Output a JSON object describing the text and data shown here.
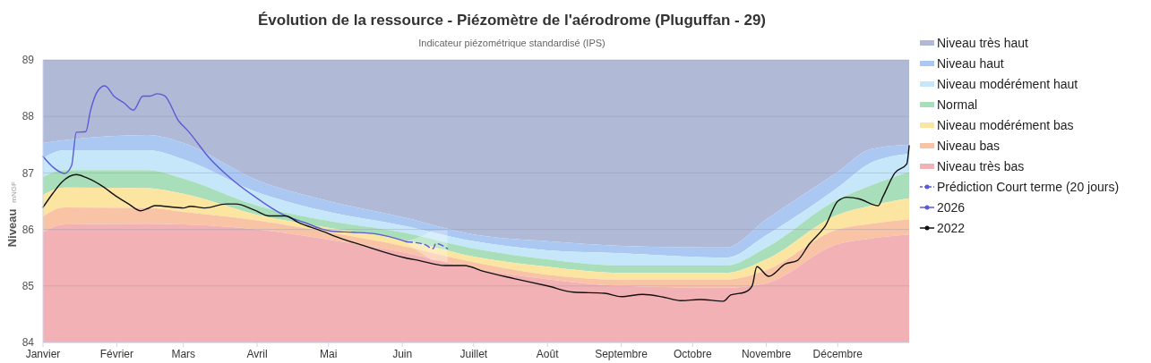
{
  "chart_data": {
    "type": "area",
    "title": "Évolution de la ressource - Piézomètre de l'aérodrome (Pluguffan - 29)",
    "subtitle": "Indicateur piézométrique standardisé (IPS)",
    "ylabel": "Niveau",
    "annotations": [
      "mNGF"
    ],
    "x": [
      "--01-01",
      "--01-10",
      "--02-14",
      "--03-01",
      "--04-01",
      "--05-01",
      "--06-01",
      "--07-01",
      "--08-01",
      "--09-01",
      "--10-15",
      "--11-01",
      "--12-01",
      "--12-15",
      "--12-31"
    ],
    "xlim": [
      "--01-01",
      "--12-31"
    ],
    "xticks": [
      {
        "value": "--01-01",
        "label": "Janvier"
      },
      {
        "value": "--02-01",
        "label": "Février"
      },
      {
        "value": "--03-01",
        "label": "Mars"
      },
      {
        "value": "--04-01",
        "label": "Avril"
      },
      {
        "value": "--05-01",
        "label": "Mai"
      },
      {
        "value": "--06-01",
        "label": "Juin"
      },
      {
        "value": "--07-01",
        "label": "Juillet"
      },
      {
        "value": "--08-01",
        "label": "Août"
      },
      {
        "value": "--09-01",
        "label": "Septembre"
      },
      {
        "value": "--10-01",
        "label": "Octobre"
      },
      {
        "value": "--11-01",
        "label": "Novembre"
      },
      {
        "value": "--12-01",
        "label": "Décembre"
      }
    ],
    "ylim": [
      84,
      89
    ],
    "yticks": [
      84,
      85,
      86,
      87,
      88,
      89
    ],
    "grid": "y",
    "legend": "right",
    "series": [
      {
        "name": "Niveau très haut",
        "color": "#b0b9d6",
        "values": [
          89,
          89,
          89,
          89,
          89,
          89,
          89,
          89,
          89,
          89,
          89,
          89,
          89,
          89,
          89
        ]
      },
      {
        "name": "Niveau haut",
        "color": "#abc8f3",
        "values": [
          87.53,
          87.58,
          87.67,
          87.53,
          86.87,
          86.5,
          86.22,
          85.91,
          85.79,
          85.71,
          85.68,
          86.18,
          87.02,
          87.42,
          87.5
        ]
      },
      {
        "name": "Niveau modérément haut",
        "color": "#c6e7f9",
        "values": [
          87.26,
          87.4,
          87.4,
          87.24,
          86.66,
          86.31,
          86.07,
          85.79,
          85.63,
          85.58,
          85.5,
          85.9,
          86.74,
          87.18,
          87.34
        ]
      },
      {
        "name": "Normal",
        "color": "#a8dfba",
        "values": [
          86.93,
          87.05,
          87.05,
          86.9,
          86.42,
          86.15,
          85.95,
          85.66,
          85.47,
          85.36,
          85.36,
          85.68,
          86.53,
          86.78,
          87.02
        ]
      },
      {
        "name": "Niveau modérément bas",
        "color": "#fce5a0",
        "values": [
          86.61,
          86.74,
          86.73,
          86.63,
          86.26,
          86.03,
          85.82,
          85.52,
          85.34,
          85.23,
          85.23,
          85.47,
          86.26,
          86.42,
          86.55
        ]
      },
      {
        "name": "Niveau bas",
        "color": "#f9c4a6",
        "values": [
          86.23,
          86.39,
          86.38,
          86.31,
          86.16,
          85.95,
          85.71,
          85.42,
          85.2,
          85.11,
          85.11,
          85.28,
          86.0,
          86.1,
          86.18
        ]
      },
      {
        "name": "Niveau très bas",
        "color": "#f2b1b4",
        "values": [
          85.95,
          86.09,
          86.1,
          86.09,
          86.0,
          85.82,
          85.6,
          85.31,
          85.12,
          85.0,
          84.97,
          85.05,
          85.74,
          85.84,
          85.91
        ]
      },
      {
        "name": "Prédiction Court terme (20 jours)",
        "type": "line",
        "line_style": "dashed",
        "color": "#5b5bd6",
        "x": [
          "--06-03",
          "--06-10",
          "--06-14",
          "--06-15",
          "--06-20"
        ],
        "values": [
          85.78,
          85.74,
          85.66,
          85.75,
          85.66
        ],
        "lower": [
          85.75,
          85.55,
          85.45,
          85.45,
          85.42
        ],
        "upper": [
          85.8,
          85.9,
          85.98,
          85.98,
          85.99
        ]
      },
      {
        "name": "2026",
        "type": "line",
        "color": "#5b5bd6",
        "x": [
          "--01-01",
          "--01-05",
          "--01-10",
          "--01-13",
          "--01-15",
          "--01-19",
          "--01-21",
          "--01-24",
          "--01-27",
          "--01-31",
          "--02-04",
          "--02-08",
          "--02-12",
          "--02-15",
          "--02-18",
          "--02-21",
          "--02-27",
          "--03-03",
          "--03-12",
          "--03-21",
          "--03-31",
          "--04-12",
          "--04-21",
          "--05-02",
          "--05-11",
          "--05-21",
          "--06-03"
        ],
        "values": [
          87.29,
          87.11,
          86.99,
          87.13,
          87.72,
          87.73,
          88.11,
          88.45,
          88.54,
          88.35,
          88.24,
          88.11,
          88.36,
          88.36,
          88.4,
          88.37,
          87.92,
          87.74,
          87.26,
          86.9,
          86.58,
          86.26,
          86.12,
          85.97,
          85.95,
          85.92,
          85.78
        ]
      },
      {
        "name": "2022",
        "type": "line",
        "color": "#111111",
        "x": [
          "--01-01",
          "--01-05",
          "--01-09",
          "--01-15",
          "--01-19",
          "--01-25",
          "--02-01",
          "--02-06",
          "--02-11",
          "--02-14",
          "--02-17",
          "--02-26",
          "--03-01",
          "--03-04",
          "--03-10",
          "--03-19",
          "--03-23",
          "--03-31",
          "--04-06",
          "--04-13",
          "--04-18",
          "--04-29",
          "--05-03",
          "--05-16",
          "--06-02",
          "--06-08",
          "--06-19",
          "--06-27",
          "--07-05",
          "--07-18",
          "--08-01",
          "--08-12",
          "--08-25",
          "--09-01",
          "--09-10",
          "--09-19",
          "--09-26",
          "--10-04",
          "--10-14",
          "--10-17",
          "--10-23",
          "--10-26",
          "--10-28",
          "--11-02",
          "--11-09",
          "--11-14",
          "--11-19",
          "--11-26",
          "--12-01",
          "--12-05",
          "--12-10",
          "--12-18",
          "--12-20",
          "--12-25",
          "--12-30",
          "--12-31"
        ],
        "values": [
          86.39,
          86.63,
          86.84,
          86.97,
          86.92,
          86.79,
          86.58,
          86.45,
          86.33,
          86.37,
          86.42,
          86.39,
          86.38,
          86.41,
          86.38,
          86.45,
          86.45,
          86.34,
          86.24,
          86.24,
          86.13,
          85.96,
          85.89,
          85.71,
          85.5,
          85.45,
          85.36,
          85.36,
          85.26,
          85.13,
          85.0,
          84.89,
          84.87,
          84.81,
          84.85,
          84.8,
          84.74,
          84.76,
          84.73,
          84.84,
          84.89,
          85.0,
          85.34,
          85.17,
          85.39,
          85.45,
          85.74,
          86.08,
          86.5,
          86.57,
          86.54,
          86.42,
          86.58,
          87.0,
          87.16,
          87.48
        ]
      }
    ]
  }
}
